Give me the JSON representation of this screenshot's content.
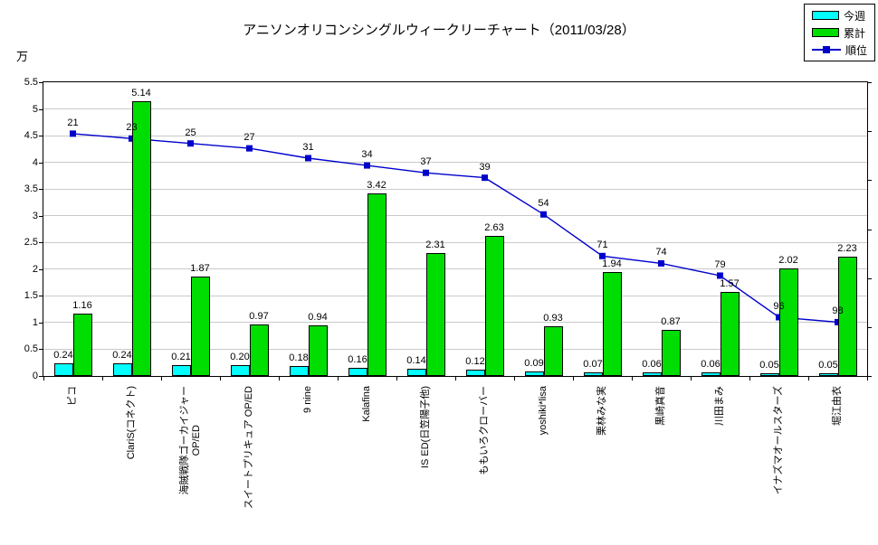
{
  "chart_data": {
    "type": "bar+line",
    "title": "アニソンオリコンシングルウィークリーチャート（2011/03/28）",
    "y_unit": "万",
    "categories": [
      "ピコ",
      "ClariS(コネクト)",
      "海賊戦隊ゴーカイジャー\nOP/ED",
      "スイートプリキュア OP/ED",
      "9 nine",
      "Kalafina",
      "IS ED(日笠陽子他)",
      "ももいろクローバー",
      "yoshiki*lisa",
      "栗林みな実",
      "黒崎真音",
      "川田まみ",
      "イナズマオールスターズ",
      "堀江由衣"
    ],
    "series": [
      {
        "name": "今週",
        "type": "bar",
        "color": "#00FFFF",
        "values": [
          0.24,
          0.24,
          0.21,
          0.2,
          0.18,
          0.16,
          0.14,
          0.12,
          0.09,
          0.07,
          0.06,
          0.06,
          0.05,
          0.05
        ]
      },
      {
        "name": "累計",
        "type": "bar",
        "color": "#00DD00",
        "values": [
          1.16,
          5.14,
          1.87,
          0.97,
          0.94,
          3.42,
          2.31,
          2.63,
          0.93,
          1.94,
          0.87,
          1.57,
          2.02,
          2.23
        ]
      },
      {
        "name": "順位",
        "type": "line",
        "color": "#0000CC",
        "values": [
          21,
          23,
          25,
          27,
          31,
          34,
          37,
          39,
          54,
          71,
          74,
          79,
          96,
          98
        ]
      }
    ],
    "ylabel": "万",
    "ylim": [
      0,
      5.5
    ],
    "y_step": 0.5,
    "rank_ylim": [
      0,
      120
    ],
    "rank_step": 20,
    "grid": true,
    "legend_position": "top-right",
    "gridline_color": "#C9C9C9"
  }
}
